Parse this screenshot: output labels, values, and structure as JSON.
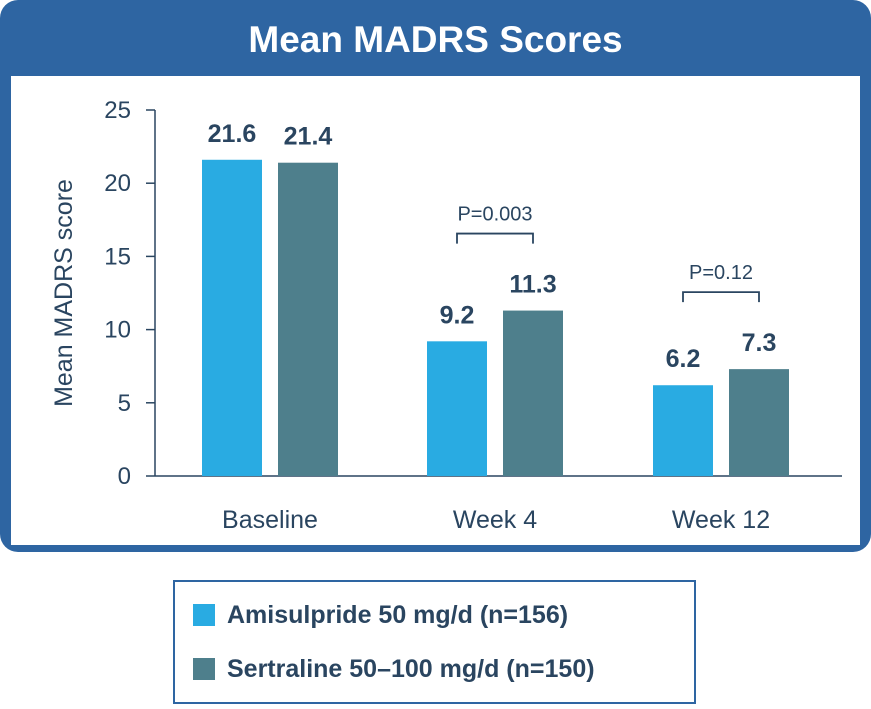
{
  "chart_data": {
    "type": "bar",
    "title": "Mean MADRS Scores",
    "xlabel": "",
    "ylabel": "Mean MADRS score",
    "ylim": [
      0,
      25
    ],
    "yticks": [
      0,
      5,
      10,
      15,
      20,
      25
    ],
    "categories": [
      "Baseline",
      "Week 4",
      "Week 12"
    ],
    "series": [
      {
        "name": "Amisulpride 50 mg/d (n=156)",
        "values": [
          21.6,
          9.2,
          6.2
        ],
        "labels": [
          "21.6",
          "9.2",
          "6.2"
        ],
        "color": "#29abe2"
      },
      {
        "name": "Sertraline 50–100 mg/d (n=150)",
        "values": [
          21.4,
          11.3,
          7.3
        ],
        "labels": [
          "21.4",
          "11.3",
          "7.3"
        ],
        "color": "#4e7f8c"
      }
    ],
    "annotations": [
      {
        "category": "Week 4",
        "text": "P=0.003"
      },
      {
        "category": "Week 12",
        "text": "P=0.12"
      }
    ],
    "grid": false,
    "legend_position": "bottom"
  },
  "colors": {
    "frame": "#2e65a2",
    "text": "#2a4560",
    "axis": "#2a4560"
  }
}
